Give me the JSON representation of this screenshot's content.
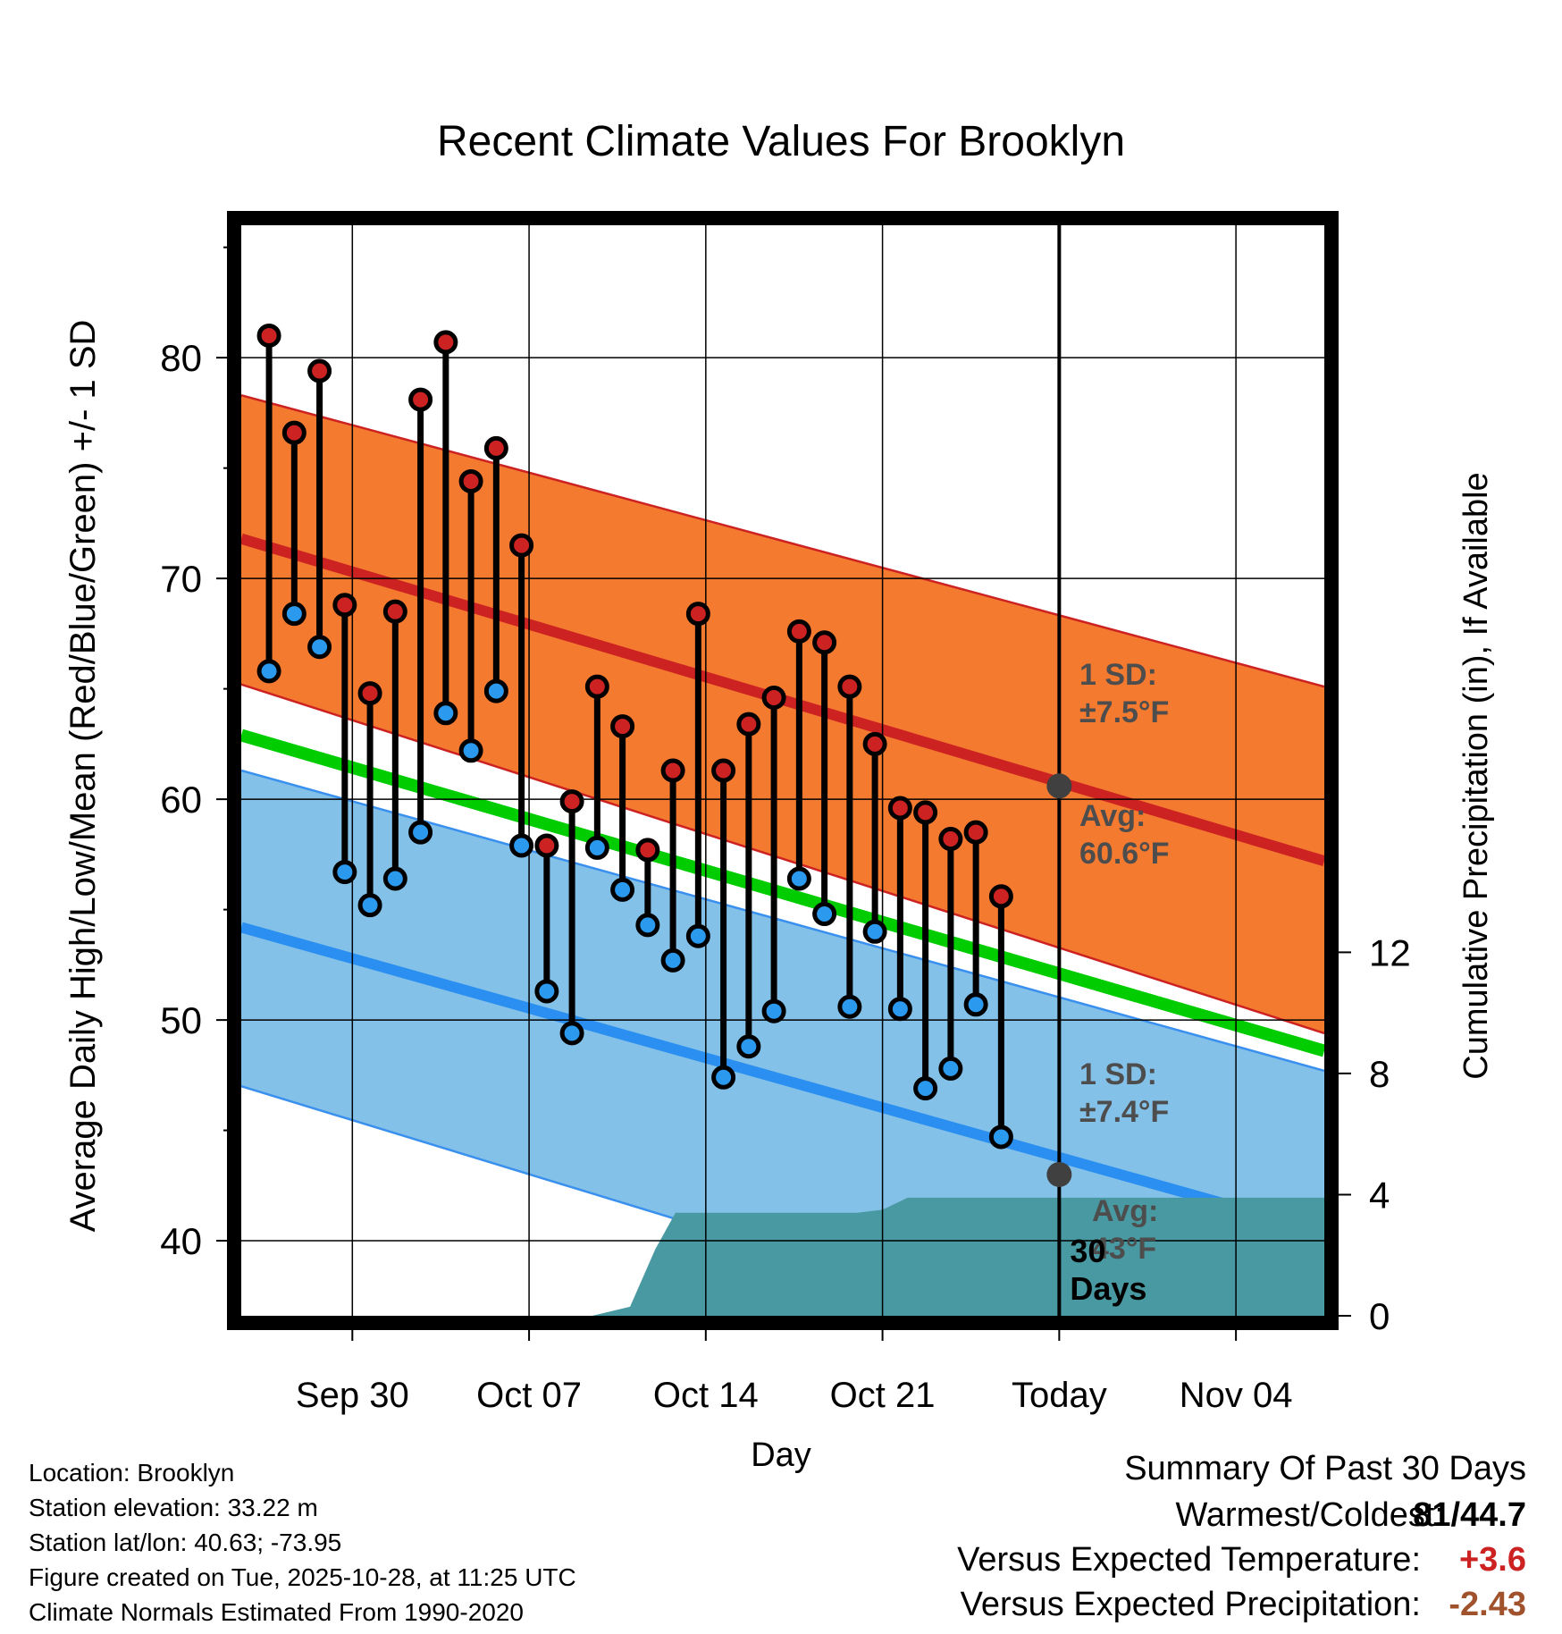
{
  "chart_data": {
    "type": "line",
    "title": "Recent Climate Values For Brooklyn",
    "xlabel": "Day",
    "ylabel": "Average Daily High/Low/Mean (Red/Blue/Green) +/- 1 SD",
    "y2label": "Cumulative Precipitation (in), If Available",
    "xlim": [
      -2.4,
      40.5
    ],
    "ylim": [
      36.6,
      86.0
    ],
    "y2lim": [
      0,
      36.0
    ],
    "x_ticks": [
      {
        "day": 2,
        "label": "Sep 30"
      },
      {
        "day": 9,
        "label": "Oct 07"
      },
      {
        "day": 16,
        "label": "Oct 14"
      },
      {
        "day": 23,
        "label": "Oct 21"
      },
      {
        "day": 30,
        "label": "Today"
      },
      {
        "day": 37,
        "label": "Nov 04"
      }
    ],
    "y_ticks": [
      40,
      50,
      60,
      70,
      80
    ],
    "y2_ticks": [
      0,
      4,
      8,
      12
    ],
    "grid": true,
    "today_day": 30,
    "today_label": "30",
    "today_label2": "Days",
    "normals": {
      "high_mean": {
        "start": 71.8,
        "end": 57.2
      },
      "high_upper": {
        "start": 78.3,
        "end": 65.1
      },
      "high_lower": {
        "start": 65.2,
        "end": 49.4
      },
      "low_mean": {
        "start": 54.2,
        "end": 40.4
      },
      "low_upper": {
        "start": 61.3,
        "end": 47.7
      },
      "low_lower": {
        "start": 47.0,
        "end": 32.0
      },
      "mean_mean": {
        "start": 62.9,
        "end": 48.6
      }
    },
    "series": [
      {
        "name": "High",
        "color": "#cc2222",
        "values": [
          81.0,
          76.6,
          79.4,
          68.8,
          64.8,
          68.5,
          78.1,
          80.7,
          74.4,
          75.9,
          71.5,
          57.9,
          59.9,
          65.1,
          63.3,
          57.7,
          61.3,
          68.4,
          61.3,
          63.4,
          64.6,
          67.6,
          67.1,
          65.1,
          62.5,
          59.6,
          59.4,
          58.2,
          58.5,
          55.6
        ]
      },
      {
        "name": "Low",
        "color": "#2a99ee",
        "values": [
          65.8,
          68.4,
          66.9,
          56.7,
          55.2,
          56.4,
          58.5,
          63.9,
          62.2,
          64.9,
          57.9,
          51.3,
          49.4,
          57.8,
          55.9,
          54.3,
          52.7,
          53.8,
          47.4,
          48.8,
          50.4,
          56.4,
          54.8,
          50.6,
          54.0,
          50.5,
          46.9,
          47.8,
          50.7,
          44.7
        ]
      }
    ],
    "precipitation": {
      "days": [
        -2.4,
        9.0,
        11.5,
        13.0,
        14.0,
        14.8,
        16.0,
        20.0,
        22.0,
        23.0,
        24.0,
        30.0,
        40.5
      ],
      "values": [
        0.0,
        0.0,
        0.0,
        0.3,
        2.2,
        3.4,
        3.4,
        3.4,
        3.4,
        3.5,
        3.9,
        3.9,
        3.9
      ]
    },
    "annotations": {
      "high_sd": [
        "1 SD:",
        "±7.5°F"
      ],
      "high_avg": [
        "Avg:",
        "60.6°F"
      ],
      "low_sd": [
        "1 SD:",
        "±7.4°F"
      ],
      "low_avg": [
        "Avg:",
        "43°F"
      ],
      "high_avg_at_today": 60.6,
      "low_avg_at_today": 43.0
    },
    "colors": {
      "high_band": "#f47a30",
      "high_line": "#cc2222",
      "low_band": "#84c1e8",
      "low_line": "#2a8ff0",
      "low_band_edge": "#3a90ee",
      "mean_line": "#00cc00",
      "precip": "#4899a2",
      "annotation": "#4d4d4d",
      "today_dot": "#404040"
    }
  },
  "info": {
    "location": "Location: Brooklyn",
    "elevation": "Station elevation: 33.22 m",
    "latlon": "Station lat/lon: 40.63; -73.95",
    "created": "Figure created on Tue, 2025-10-28, at 11:25 UTC",
    "normals": "Climate Normals Estimated From 1990-2020"
  },
  "summary": {
    "title": "Summary Of Past 30 Days",
    "warmest_label": "Warmest/Coldest:",
    "warmest_value": "81/44.7",
    "temp_label": "Versus Expected Temperature:",
    "temp_value": "+3.6",
    "precip_label": "Versus Expected Precipitation:",
    "precip_value": "-2.43",
    "temp_color": "#cc2222",
    "precip_color": "#a0522d"
  }
}
